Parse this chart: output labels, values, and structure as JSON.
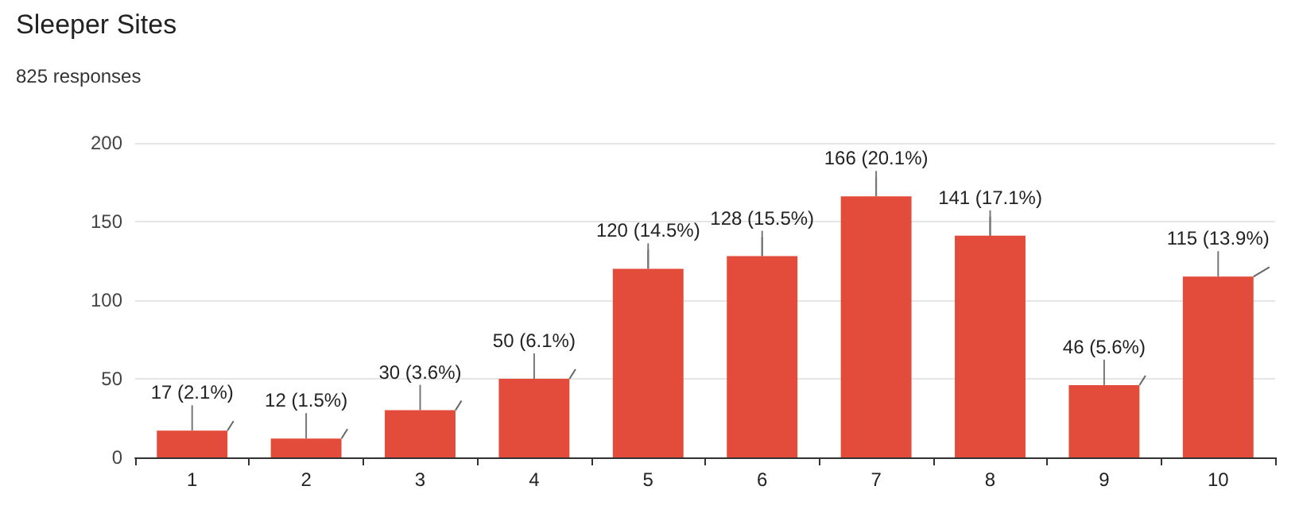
{
  "chart_data": {
    "type": "bar",
    "title": "Sleeper Sites",
    "subtitle": "825 responses",
    "categories": [
      "1",
      "2",
      "3",
      "4",
      "5",
      "6",
      "7",
      "8",
      "9",
      "10"
    ],
    "values": [
      17,
      12,
      30,
      50,
      120,
      128,
      166,
      141,
      46,
      115
    ],
    "value_labels": [
      "17 (2.1%)",
      "12 (1.5%)",
      "30 (3.6%)",
      "50 (6.1%)",
      "120 (14.5%)",
      "128 (15.5%)",
      "166 (20.1%)",
      "141 (17.1%)",
      "46 (5.6%)",
      "115 (13.9%)"
    ],
    "color": "#e34c3a",
    "ylim": [
      0,
      200
    ],
    "yticks": [
      0,
      50,
      100,
      150,
      200
    ],
    "grid": "y"
  }
}
